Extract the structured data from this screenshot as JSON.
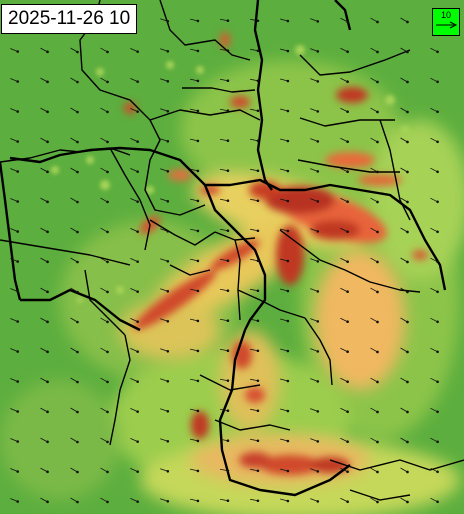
{
  "map": {
    "timestamp": "2025-11-26 10",
    "legend": {
      "label": "10",
      "color": "#00ff00",
      "arrow": "arrow-right-icon"
    }
  }
}
